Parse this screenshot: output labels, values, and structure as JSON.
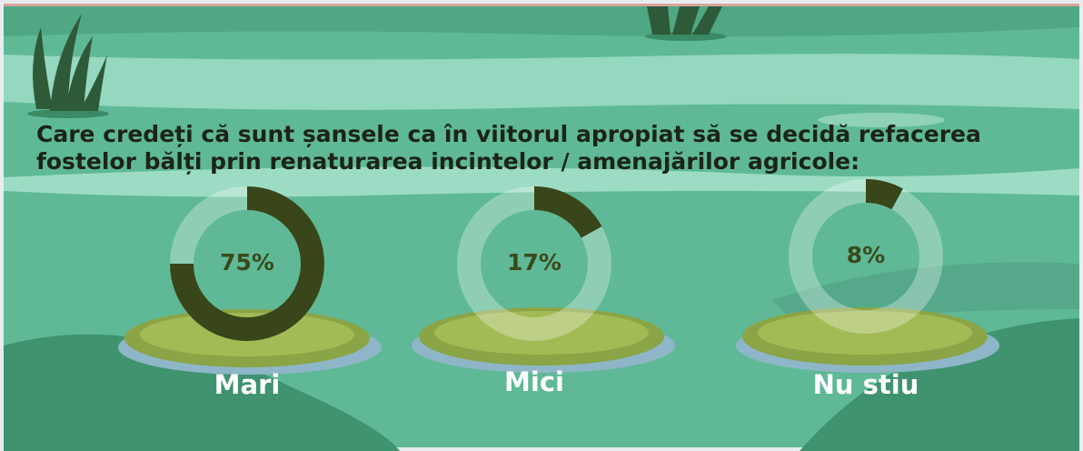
{
  "title": [
    "Care credeți că sunt șansele ca în viitorul apropiat să se decidă refacerea",
    "fostelor bălți prin renaturarea incintelor / amenajărilor agricole:"
  ],
  "chart_data": [
    {
      "type": "donut",
      "categories": [
        "Mari"
      ],
      "values": [
        75
      ],
      "value_labels": [
        "75%"
      ],
      "color": "#38461a"
    },
    {
      "type": "donut",
      "categories": [
        "Mici"
      ],
      "values": [
        17
      ],
      "value_labels": [
        "17%"
      ],
      "color": "#38461a"
    },
    {
      "type": "donut",
      "categories": [
        "Nu stiu"
      ],
      "values": [
        8
      ],
      "value_labels": [
        "8%"
      ],
      "color": "#38461a"
    }
  ]
}
